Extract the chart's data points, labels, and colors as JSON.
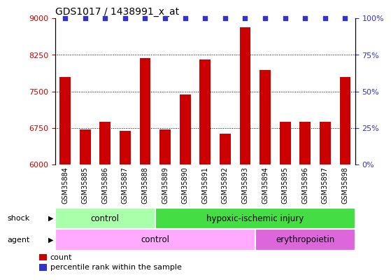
{
  "title": "GDS1017 / 1438991_x_at",
  "samples": [
    "GSM35884",
    "GSM35885",
    "GSM35886",
    "GSM35887",
    "GSM35888",
    "GSM35889",
    "GSM35890",
    "GSM35891",
    "GSM35892",
    "GSM35893",
    "GSM35894",
    "GSM35895",
    "GSM35896",
    "GSM35897",
    "GSM35898"
  ],
  "counts": [
    7800,
    6720,
    6870,
    6690,
    8180,
    6720,
    7440,
    8160,
    6630,
    8820,
    7940,
    6870,
    6870,
    6870,
    7790
  ],
  "ylim_left": [
    6000,
    9000
  ],
  "ylim_right": [
    0,
    100
  ],
  "yticks_left": [
    6000,
    6750,
    7500,
    8250,
    9000
  ],
  "yticks_right": [
    0,
    25,
    50,
    75,
    100
  ],
  "bar_color": "#cc0000",
  "dot_color": "#3333cc",
  "shock_groups": [
    {
      "label": "control",
      "start": 0,
      "end": 4,
      "color": "#aaffaa"
    },
    {
      "label": "hypoxic-ischemic injury",
      "start": 5,
      "end": 14,
      "color": "#44dd44"
    }
  ],
  "agent_groups": [
    {
      "label": "control",
      "start": 0,
      "end": 9,
      "color": "#ffaaff"
    },
    {
      "label": "erythropoietin",
      "start": 10,
      "end": 14,
      "color": "#dd66dd"
    }
  ],
  "legend_count_label": "count",
  "legend_percentile_label": "percentile rank within the sample",
  "tick_label_color_left": "#cc0000",
  "tick_label_color_right": "#3333cc",
  "xtick_bg_color": "#cccccc",
  "grid_yticks": [
    6750,
    7500,
    8250
  ]
}
